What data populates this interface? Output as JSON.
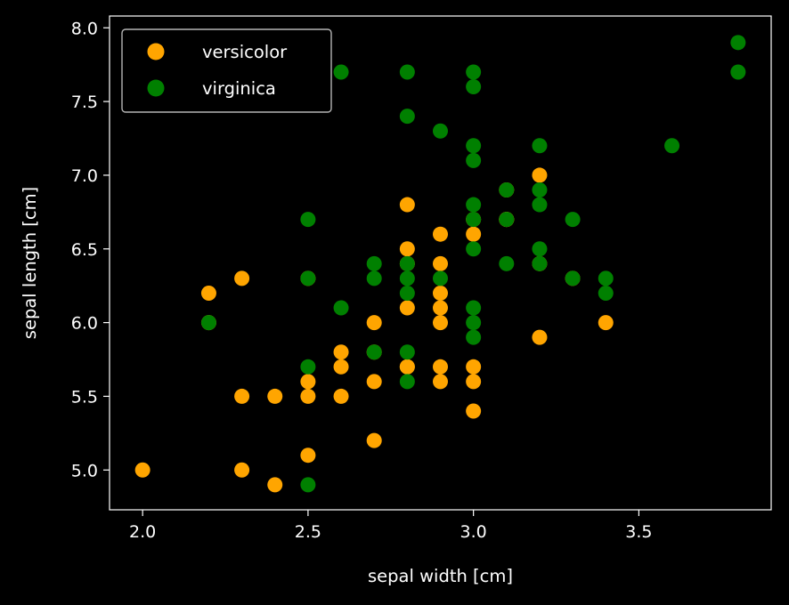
{
  "chart_data": {
    "type": "scatter",
    "title": "",
    "xlabel": "sepal width [cm]",
    "ylabel": "sepal length [cm]",
    "xlim": [
      1.9,
      3.9
    ],
    "ylim": [
      4.73,
      8.08
    ],
    "xticks": [
      2.0,
      2.5,
      3.0,
      3.5
    ],
    "yticks": [
      5.0,
      5.5,
      6.0,
      6.5,
      7.0,
      7.5,
      8.0
    ],
    "grid": false,
    "legend_position": "top-left",
    "background_color": "#000000",
    "axis_color": "#ffffff",
    "series": [
      {
        "name": "versicolor",
        "color": "#ffa500",
        "points": [
          [
            2.0,
            5.0
          ],
          [
            2.2,
            6.2
          ],
          [
            2.2,
            6.0
          ],
          [
            2.3,
            6.3
          ],
          [
            2.3,
            5.5
          ],
          [
            2.3,
            5.0
          ],
          [
            2.4,
            5.5
          ],
          [
            2.4,
            4.9
          ],
          [
            2.5,
            5.6
          ],
          [
            2.5,
            5.5
          ],
          [
            2.5,
            5.1
          ],
          [
            2.6,
            5.8
          ],
          [
            2.6,
            5.7
          ],
          [
            2.6,
            5.5
          ],
          [
            2.7,
            6.0
          ],
          [
            2.7,
            5.8
          ],
          [
            2.7,
            5.6
          ],
          [
            2.7,
            5.2
          ],
          [
            2.8,
            6.8
          ],
          [
            2.8,
            6.5
          ],
          [
            2.8,
            6.1
          ],
          [
            2.8,
            5.7
          ],
          [
            2.9,
            6.6
          ],
          [
            2.9,
            6.4
          ],
          [
            2.9,
            6.2
          ],
          [
            2.9,
            6.1
          ],
          [
            2.9,
            6.0
          ],
          [
            2.9,
            5.7
          ],
          [
            2.9,
            5.6
          ],
          [
            3.0,
            6.7
          ],
          [
            3.0,
            6.6
          ],
          [
            3.0,
            5.7
          ],
          [
            3.0,
            5.6
          ],
          [
            3.0,
            5.4
          ],
          [
            3.1,
            6.7
          ],
          [
            3.1,
            6.9
          ],
          [
            3.2,
            7.0
          ],
          [
            3.2,
            6.4
          ],
          [
            3.2,
            5.9
          ],
          [
            3.3,
            6.3
          ],
          [
            3.4,
            6.0
          ],
          [
            2.8,
            6.4
          ],
          [
            2.5,
            6.3
          ],
          [
            3.1,
            6.7
          ],
          [
            2.8,
            5.7
          ]
        ]
      },
      {
        "name": "virginica",
        "color": "#008000",
        "points": [
          [
            2.2,
            6.0
          ],
          [
            2.5,
            6.7
          ],
          [
            2.5,
            6.3
          ],
          [
            2.5,
            5.7
          ],
          [
            2.5,
            4.9
          ],
          [
            2.6,
            7.7
          ],
          [
            2.6,
            6.1
          ],
          [
            2.7,
            6.4
          ],
          [
            2.7,
            6.3
          ],
          [
            2.7,
            5.8
          ],
          [
            2.8,
            7.7
          ],
          [
            2.8,
            7.4
          ],
          [
            2.8,
            6.4
          ],
          [
            2.8,
            6.3
          ],
          [
            2.8,
            6.2
          ],
          [
            2.8,
            5.8
          ],
          [
            2.8,
            5.6
          ],
          [
            2.9,
            7.3
          ],
          [
            2.9,
            6.3
          ],
          [
            3.0,
            7.7
          ],
          [
            3.0,
            7.6
          ],
          [
            3.0,
            7.2
          ],
          [
            3.0,
            7.1
          ],
          [
            3.0,
            6.8
          ],
          [
            3.0,
            6.7
          ],
          [
            3.0,
            6.5
          ],
          [
            3.0,
            6.1
          ],
          [
            3.0,
            6.0
          ],
          [
            3.0,
            5.9
          ],
          [
            3.1,
            6.9
          ],
          [
            3.1,
            6.7
          ],
          [
            3.1,
            6.4
          ],
          [
            3.2,
            7.2
          ],
          [
            3.2,
            6.9
          ],
          [
            3.2,
            6.8
          ],
          [
            3.2,
            6.5
          ],
          [
            3.2,
            6.4
          ],
          [
            3.3,
            6.7
          ],
          [
            3.3,
            6.3
          ],
          [
            3.4,
            6.3
          ],
          [
            3.4,
            6.2
          ],
          [
            3.6,
            7.2
          ],
          [
            3.8,
            7.9
          ],
          [
            3.8,
            7.7
          ]
        ]
      }
    ]
  }
}
